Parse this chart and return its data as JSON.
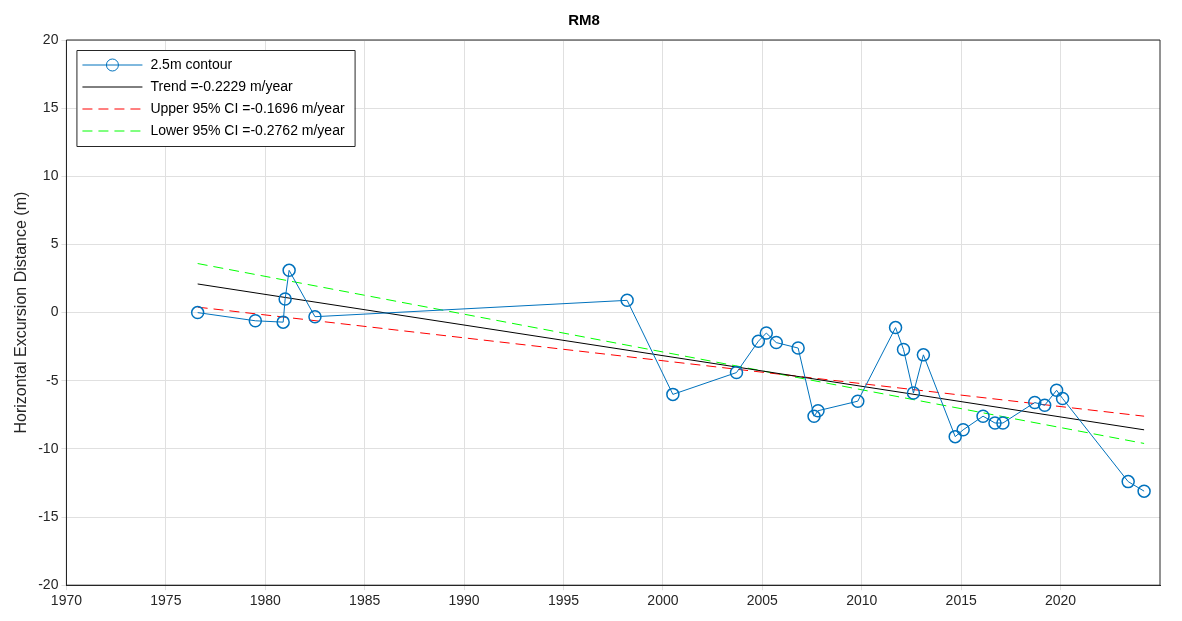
{
  "chart_data": {
    "type": "line",
    "title": "RM8",
    "ylabel": "Horizontal Excursion Distance (m)",
    "xlim": [
      1970,
      2025
    ],
    "xticks": [
      1970,
      1975,
      1980,
      1985,
      1990,
      1995,
      2000,
      2005,
      2010,
      2015,
      2020
    ],
    "ylim": [
      -20,
      20
    ],
    "yticks": [
      -20,
      -15,
      -10,
      -5,
      0,
      5,
      10,
      15,
      20
    ],
    "grid": true,
    "legend": "top left",
    "series": [
      {
        "name": "2.5m contour",
        "color": "#0072bd",
        "marker": "circle",
        "line_style": "solid",
        "x": [
          1976.6,
          1979.5,
          1980.9,
          1981.0,
          1981.2,
          1982.5,
          1998.2,
          2000.5,
          2003.7,
          2004.8,
          2005.2,
          2005.7,
          2006.8,
          2007.6,
          2007.8,
          2009.8,
          2011.7,
          2012.1,
          2012.6,
          2013.1,
          2014.7,
          2015.1,
          2016.1,
          2016.7,
          2017.1,
          2018.7,
          2019.2,
          2019.8,
          2020.1,
          2023.4,
          2024.2
        ],
        "values": [
          0,
          -0.6,
          -0.7,
          1.0,
          3.1,
          -0.3,
          0.9,
          -6.0,
          -4.4,
          -2.1,
          -1.5,
          -2.2,
          -2.6,
          -7.6,
          -7.2,
          -6.5,
          -1.1,
          -2.7,
          -5.9,
          -3.1,
          -9.1,
          -8.6,
          -7.6,
          -8.1,
          -8.1,
          -6.6,
          -6.8,
          -5.7,
          -6.3,
          -12.4,
          -13.1
        ]
      },
      {
        "name": "Trend =-0.2229 m/year",
        "color": "#000000",
        "marker": "none",
        "line_style": "solid",
        "x": [
          1976.6,
          2024.2
        ],
        "values": [
          2.1,
          -8.6
        ]
      },
      {
        "name": "Upper 95% CI =-0.1696 m/year",
        "color": "#ff0000",
        "marker": "none",
        "line_style": "dashed",
        "x": [
          1976.6,
          2024.2
        ],
        "values": [
          0.4,
          -7.6
        ]
      },
      {
        "name": "Lower 95% CI =-0.2762 m/year",
        "color": "#00ff00",
        "marker": "none",
        "line_style": "dashed",
        "x": [
          1976.6,
          2024.2
        ],
        "values": [
          3.6,
          -9.6
        ]
      }
    ]
  }
}
